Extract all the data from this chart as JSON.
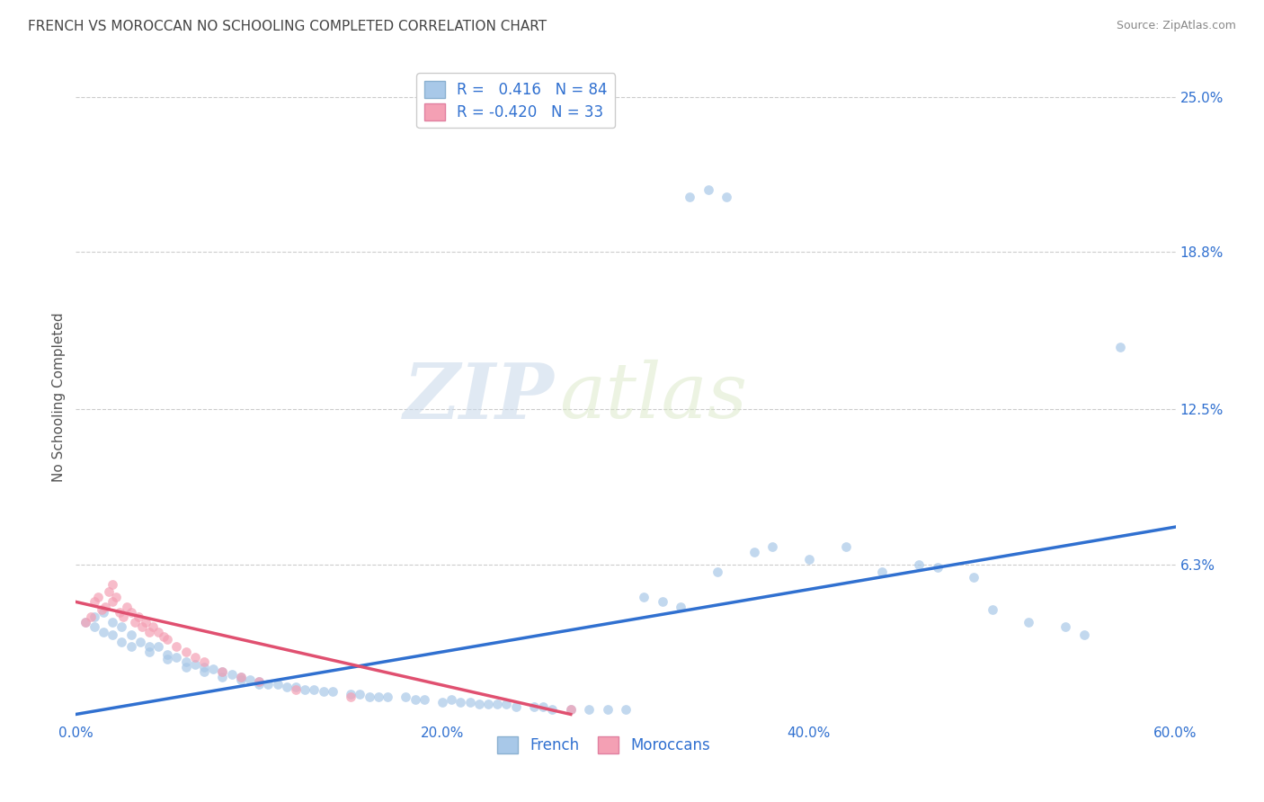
{
  "title": "FRENCH VS MOROCCAN NO SCHOOLING COMPLETED CORRELATION CHART",
  "source": "Source: ZipAtlas.com",
  "ylabel": "No Schooling Completed",
  "xlim": [
    0.0,
    0.6
  ],
  "ylim": [
    0.0,
    0.26
  ],
  "xtick_labels": [
    "0.0%",
    "20.0%",
    "40.0%",
    "60.0%"
  ],
  "xtick_vals": [
    0.0,
    0.2,
    0.4,
    0.6
  ],
  "ytick_labels": [
    "25.0%",
    "18.8%",
    "12.5%",
    "6.3%"
  ],
  "ytick_vals": [
    0.25,
    0.188,
    0.125,
    0.063
  ],
  "legend_R_french": "R =   0.416   N = 84",
  "legend_R_moroccan": "R = -0.420   N = 33",
  "french_color": "#a8c8e8",
  "moroccan_color": "#f4a0b4",
  "french_line_color": "#3070d0",
  "moroccan_line_color": "#e05070",
  "title_color": "#444444",
  "tick_color": "#3070d0",
  "ylabel_color": "#555555",
  "background_color": "#ffffff",
  "grid_color": "#cccccc",
  "watermark_zip": "ZIP",
  "watermark_atlas": "atlas",
  "marker_size": 60,
  "french_scatter_x": [
    0.005,
    0.01,
    0.01,
    0.015,
    0.015,
    0.02,
    0.02,
    0.025,
    0.025,
    0.03,
    0.03,
    0.035,
    0.04,
    0.04,
    0.045,
    0.05,
    0.05,
    0.055,
    0.06,
    0.06,
    0.065,
    0.07,
    0.07,
    0.075,
    0.08,
    0.08,
    0.085,
    0.09,
    0.09,
    0.095,
    0.1,
    0.1,
    0.105,
    0.11,
    0.115,
    0.12,
    0.125,
    0.13,
    0.135,
    0.14,
    0.15,
    0.155,
    0.16,
    0.165,
    0.17,
    0.18,
    0.185,
    0.19,
    0.2,
    0.205,
    0.21,
    0.215,
    0.22,
    0.225,
    0.23,
    0.235,
    0.24,
    0.25,
    0.255,
    0.26,
    0.27,
    0.28,
    0.29,
    0.3,
    0.31,
    0.32,
    0.33,
    0.35,
    0.37,
    0.38,
    0.4,
    0.42,
    0.44,
    0.46,
    0.47,
    0.49,
    0.5,
    0.52,
    0.54,
    0.55,
    0.335,
    0.345,
    0.355,
    0.57
  ],
  "french_scatter_y": [
    0.04,
    0.042,
    0.038,
    0.044,
    0.036,
    0.04,
    0.035,
    0.038,
    0.032,
    0.035,
    0.03,
    0.032,
    0.03,
    0.028,
    0.03,
    0.027,
    0.025,
    0.026,
    0.024,
    0.022,
    0.023,
    0.022,
    0.02,
    0.021,
    0.02,
    0.018,
    0.019,
    0.018,
    0.017,
    0.017,
    0.016,
    0.015,
    0.015,
    0.015,
    0.014,
    0.014,
    0.013,
    0.013,
    0.012,
    0.012,
    0.011,
    0.011,
    0.01,
    0.01,
    0.01,
    0.01,
    0.009,
    0.009,
    0.008,
    0.009,
    0.008,
    0.008,
    0.007,
    0.007,
    0.007,
    0.007,
    0.006,
    0.006,
    0.006,
    0.005,
    0.005,
    0.005,
    0.005,
    0.005,
    0.05,
    0.048,
    0.046,
    0.06,
    0.068,
    0.07,
    0.065,
    0.07,
    0.06,
    0.063,
    0.062,
    0.058,
    0.045,
    0.04,
    0.038,
    0.035,
    0.21,
    0.213,
    0.21,
    0.15
  ],
  "moroccan_scatter_x": [
    0.005,
    0.008,
    0.01,
    0.012,
    0.014,
    0.016,
    0.018,
    0.02,
    0.02,
    0.022,
    0.024,
    0.026,
    0.028,
    0.03,
    0.032,
    0.034,
    0.036,
    0.038,
    0.04,
    0.042,
    0.045,
    0.048,
    0.05,
    0.055,
    0.06,
    0.065,
    0.07,
    0.08,
    0.09,
    0.1,
    0.12,
    0.15,
    0.27
  ],
  "moroccan_scatter_y": [
    0.04,
    0.042,
    0.048,
    0.05,
    0.045,
    0.046,
    0.052,
    0.055,
    0.048,
    0.05,
    0.044,
    0.042,
    0.046,
    0.044,
    0.04,
    0.042,
    0.038,
    0.04,
    0.036,
    0.038,
    0.036,
    0.034,
    0.033,
    0.03,
    0.028,
    0.026,
    0.024,
    0.02,
    0.018,
    0.016,
    0.013,
    0.01,
    0.005
  ],
  "french_line_x": [
    0.0,
    0.6
  ],
  "french_line_y": [
    0.003,
    0.078
  ],
  "moroccan_line_x": [
    0.0,
    0.27
  ],
  "moroccan_line_y": [
    0.048,
    0.003
  ]
}
